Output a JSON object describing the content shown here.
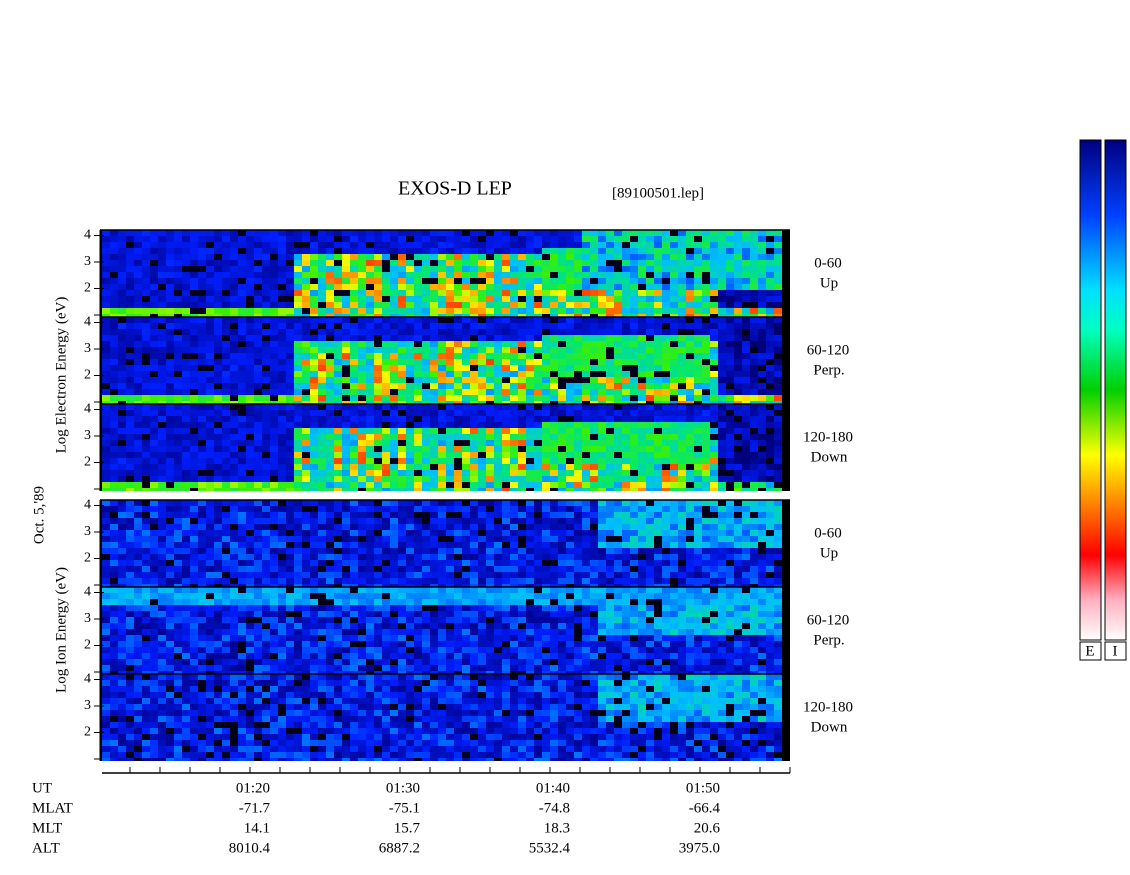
{
  "header": {
    "title": "EXOS-D LEP",
    "file": "[89100501.lep]"
  },
  "axis_labels": {
    "electron": "Log Electron Energy (eV)",
    "date": "Oct. 5,'89",
    "ion": "Log Ion Energy (eV)"
  },
  "panels": [
    {
      "species": "electron",
      "ticks": [
        4,
        3,
        2
      ],
      "angle": "0-60",
      "direction": "Up"
    },
    {
      "species": "electron",
      "ticks": [
        4,
        3,
        2
      ],
      "angle": "60-120",
      "direction": "Perp."
    },
    {
      "species": "electron",
      "ticks": [
        4,
        3,
        2
      ],
      "angle": "120-180",
      "direction": "Down"
    },
    {
      "species": "ion",
      "ticks": [
        4,
        3,
        2
      ],
      "angle": "0-60",
      "direction": "Up"
    },
    {
      "species": "ion",
      "ticks": [
        4,
        3,
        2
      ],
      "angle": "60-120",
      "direction": "Perp."
    },
    {
      "species": "ion",
      "ticks": [
        4,
        3,
        2
      ],
      "angle": "120-180",
      "direction": "Down"
    }
  ],
  "time_axis": {
    "rows": [
      [
        "UT",
        "01:20",
        "01:30",
        "01:40",
        "01:50"
      ],
      [
        "MLAT",
        "-71.7",
        "-75.1",
        "-74.8",
        "-66.4"
      ],
      [
        "MLT",
        "14.1",
        "15.7",
        "18.3",
        "20.6"
      ],
      [
        "ALT",
        "8010.4",
        "6887.2",
        "5532.4",
        "3975.0"
      ]
    ]
  },
  "colorbars": [
    "E",
    "I"
  ]
}
